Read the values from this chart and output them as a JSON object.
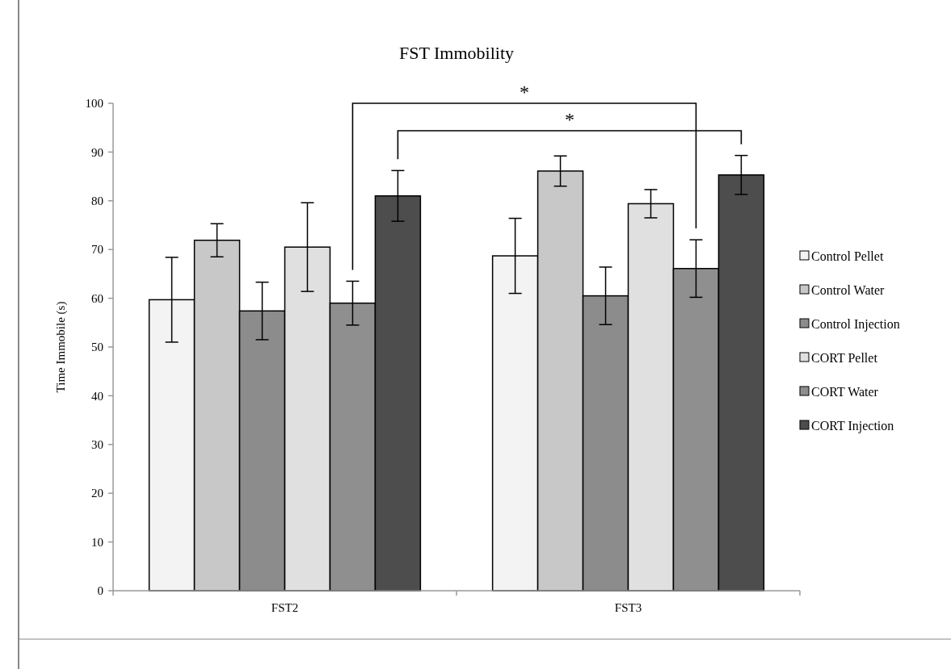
{
  "chart_data": {
    "type": "bar",
    "title": "FST Immobility",
    "ylabel": "Time Immobile (s)",
    "categories": [
      "FST2",
      "FST3"
    ],
    "series": [
      {
        "name": "Control Pellet",
        "color": "#f3f3f3",
        "values": [
          59.7,
          68.7
        ],
        "errors": [
          8.7,
          7.7
        ]
      },
      {
        "name": "Control Water",
        "color": "#c8c8c8",
        "values": [
          71.9,
          86.1
        ],
        "errors": [
          3.4,
          3.1
        ]
      },
      {
        "name": "Control Injection",
        "color": "#8c8c8c",
        "values": [
          57.4,
          60.5
        ],
        "errors": [
          5.9,
          5.9
        ]
      },
      {
        "name": "CORT Pellet",
        "color": "#e0e0e0",
        "values": [
          70.5,
          79.4
        ],
        "errors": [
          9.1,
          2.9
        ]
      },
      {
        "name": "CORT Water",
        "color": "#8f8f8f",
        "values": [
          59.0,
          66.1
        ],
        "errors": [
          4.5,
          5.9
        ]
      },
      {
        "name": "CORT Injection",
        "color": "#4d4d4d",
        "values": [
          81.0,
          85.3
        ],
        "errors": [
          5.2,
          4.0
        ]
      }
    ],
    "ylim": [
      0,
      100
    ],
    "yticks": [
      0,
      10,
      20,
      30,
      40,
      50,
      60,
      70,
      80,
      90,
      100
    ],
    "grid": false,
    "legend": "right",
    "annotations": [
      "*",
      "*"
    ]
  }
}
